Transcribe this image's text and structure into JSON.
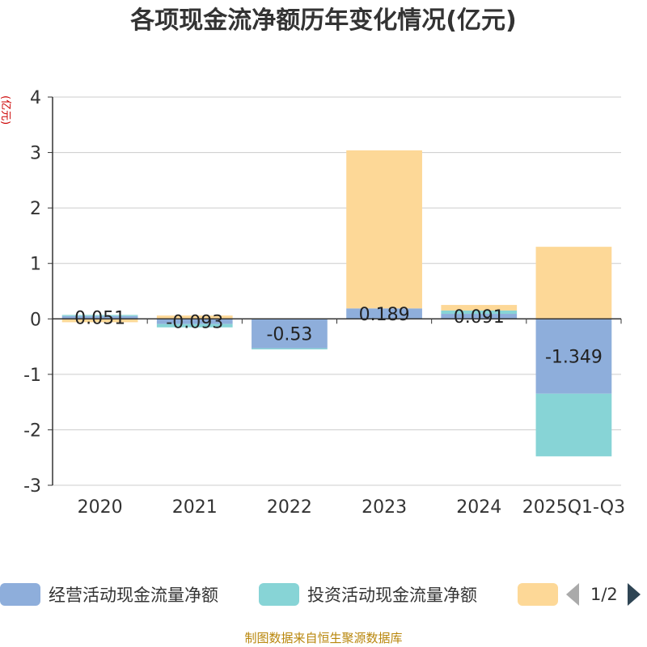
{
  "title": "各项现金流净额历年变化情况(亿元)",
  "y_unit": "(亿元)",
  "source": "制图数据来自恒生聚源数据库",
  "pager": {
    "text": "1/2"
  },
  "colors": {
    "operating": "#8eaedb",
    "investing": "#87d4d6",
    "financing": "#fdd897",
    "axis": "#333333",
    "grid": "#cccccc"
  },
  "chart_data": {
    "type": "bar",
    "stacked": true,
    "categories": [
      "2020",
      "2021",
      "2022",
      "2023",
      "2024",
      "2025Q1-Q3"
    ],
    "ylim": [
      -3,
      4
    ],
    "yticks": [
      4,
      3,
      2,
      1,
      0,
      -1,
      -2,
      -3
    ],
    "grid": true,
    "legend_position": "bottom",
    "series": [
      {
        "name": "经营活动现金流量净额",
        "color": "#8eaedb",
        "values": [
          0.051,
          -0.093,
          -0.53,
          0.189,
          0.091,
          -1.349
        ]
      },
      {
        "name": "投资活动现金流量净额",
        "color": "#87d4d6",
        "values": [
          0.02,
          -0.06,
          -0.02,
          0.0,
          0.06,
          -1.13
        ]
      },
      {
        "name": "",
        "color": "#fdd897",
        "values": [
          -0.06,
          0.06,
          0.0,
          2.85,
          0.1,
          1.3
        ]
      }
    ],
    "data_labels": [
      "0.051",
      "-0.093",
      "-0.53",
      "0.189",
      "0.091",
      "-1.349"
    ]
  }
}
